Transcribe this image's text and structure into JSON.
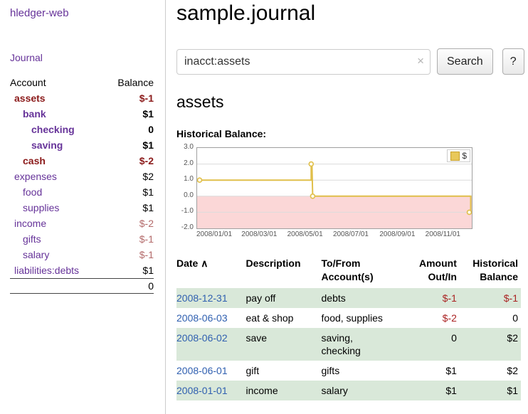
{
  "colors": {
    "link_purple": "#663399",
    "maroon": "#8b1a1a",
    "rose": "#b36a6a",
    "negative_red": "#aa2222",
    "date_blue": "#3060b0",
    "row_green": "#d9e8d9",
    "chart_line": "#e0bf4a",
    "chart_negative_fill": "#fbd7d7"
  },
  "sidebar": {
    "app_title": "hledger-web",
    "journal_label": "Journal",
    "accounts": {
      "account_header": "Account",
      "balance_header": "Balance",
      "rows": [
        {
          "name": "assets",
          "balance": "$-1"
        },
        {
          "name": "bank",
          "balance": "$1"
        },
        {
          "name": "checking",
          "balance": "0"
        },
        {
          "name": "saving",
          "balance": "$1"
        },
        {
          "name": "cash",
          "balance": "$-2"
        },
        {
          "name": "expenses",
          "balance": "$2"
        },
        {
          "name": "food",
          "balance": "$1"
        },
        {
          "name": "supplies",
          "balance": "$1"
        },
        {
          "name": "income",
          "balance": "$-2"
        },
        {
          "name": "gifts",
          "balance": "$-1"
        },
        {
          "name": "salary",
          "balance": "$-1"
        },
        {
          "name": "liabilities:debts",
          "balance": "$1"
        }
      ],
      "total": "0"
    }
  },
  "main": {
    "title": "sample.journal",
    "search": {
      "value": "inacct:assets",
      "clear_icon": "×",
      "button_label": "Search",
      "help_label": "?"
    },
    "account_heading": "assets"
  },
  "chart_data": {
    "type": "line",
    "title": "Historical Balance:",
    "legend": "$",
    "ylim": [
      -2,
      3
    ],
    "xlim_days": [
      0,
      366
    ],
    "yticks": [
      {
        "v": 3,
        "label": "3.0"
      },
      {
        "v": 2,
        "label": "2.0"
      },
      {
        "v": 1,
        "label": "1.0"
      },
      {
        "v": 0,
        "label": "0.0"
      },
      {
        "v": -1,
        "label": "-1.0"
      },
      {
        "v": -2,
        "label": "-2.0"
      }
    ],
    "xticks": [
      {
        "d": 0,
        "label": "2008/01/01"
      },
      {
        "d": 60,
        "label": "2008/03/01"
      },
      {
        "d": 121,
        "label": "2008/05/01"
      },
      {
        "d": 182,
        "label": "2008/07/01"
      },
      {
        "d": 244,
        "label": "2008/09/01"
      },
      {
        "d": 305,
        "label": "2008/11/01"
      }
    ],
    "series": [
      {
        "name": "$",
        "step_points": [
          [
            0,
            1
          ],
          [
            152,
            1
          ],
          [
            152,
            2
          ],
          [
            153,
            2
          ],
          [
            154,
            0
          ],
          [
            366,
            0
          ],
          [
            366,
            -1
          ]
        ],
        "markers": [
          [
            0,
            1
          ],
          [
            152,
            2
          ],
          [
            154,
            0
          ],
          [
            366,
            -1
          ]
        ],
        "data": [
          {
            "date": "2008-01-01",
            "balance": 1
          },
          {
            "date": "2008-06-01",
            "balance": 2
          },
          {
            "date": "2008-06-02",
            "balance": 2
          },
          {
            "date": "2008-06-03",
            "balance": 0
          },
          {
            "date": "2008-12-31",
            "balance": -1
          }
        ]
      }
    ]
  },
  "register": {
    "headers": {
      "date": "Date",
      "sort_indicator": "∧",
      "description": "Description",
      "accounts": "To/From\nAccount(s)",
      "amount": "Amount\nOut/In",
      "balance": "Historical\nBalance"
    },
    "rows": [
      {
        "date": "2008-12-31",
        "description": "pay off",
        "accounts": "debts",
        "amount": "$-1",
        "balance": "$-1"
      },
      {
        "date": "2008-06-03",
        "description": "eat & shop",
        "accounts": "food, supplies",
        "amount": "$-2",
        "balance": "0"
      },
      {
        "date": "2008-06-02",
        "description": "save",
        "accounts": "saving,\nchecking",
        "amount": "0",
        "balance": "$2"
      },
      {
        "date": "2008-06-01",
        "description": "gift",
        "accounts": "gifts",
        "amount": "$1",
        "balance": "$2"
      },
      {
        "date": "2008-01-01",
        "description": "income",
        "accounts": "salary",
        "amount": "$1",
        "balance": "$1"
      }
    ]
  }
}
